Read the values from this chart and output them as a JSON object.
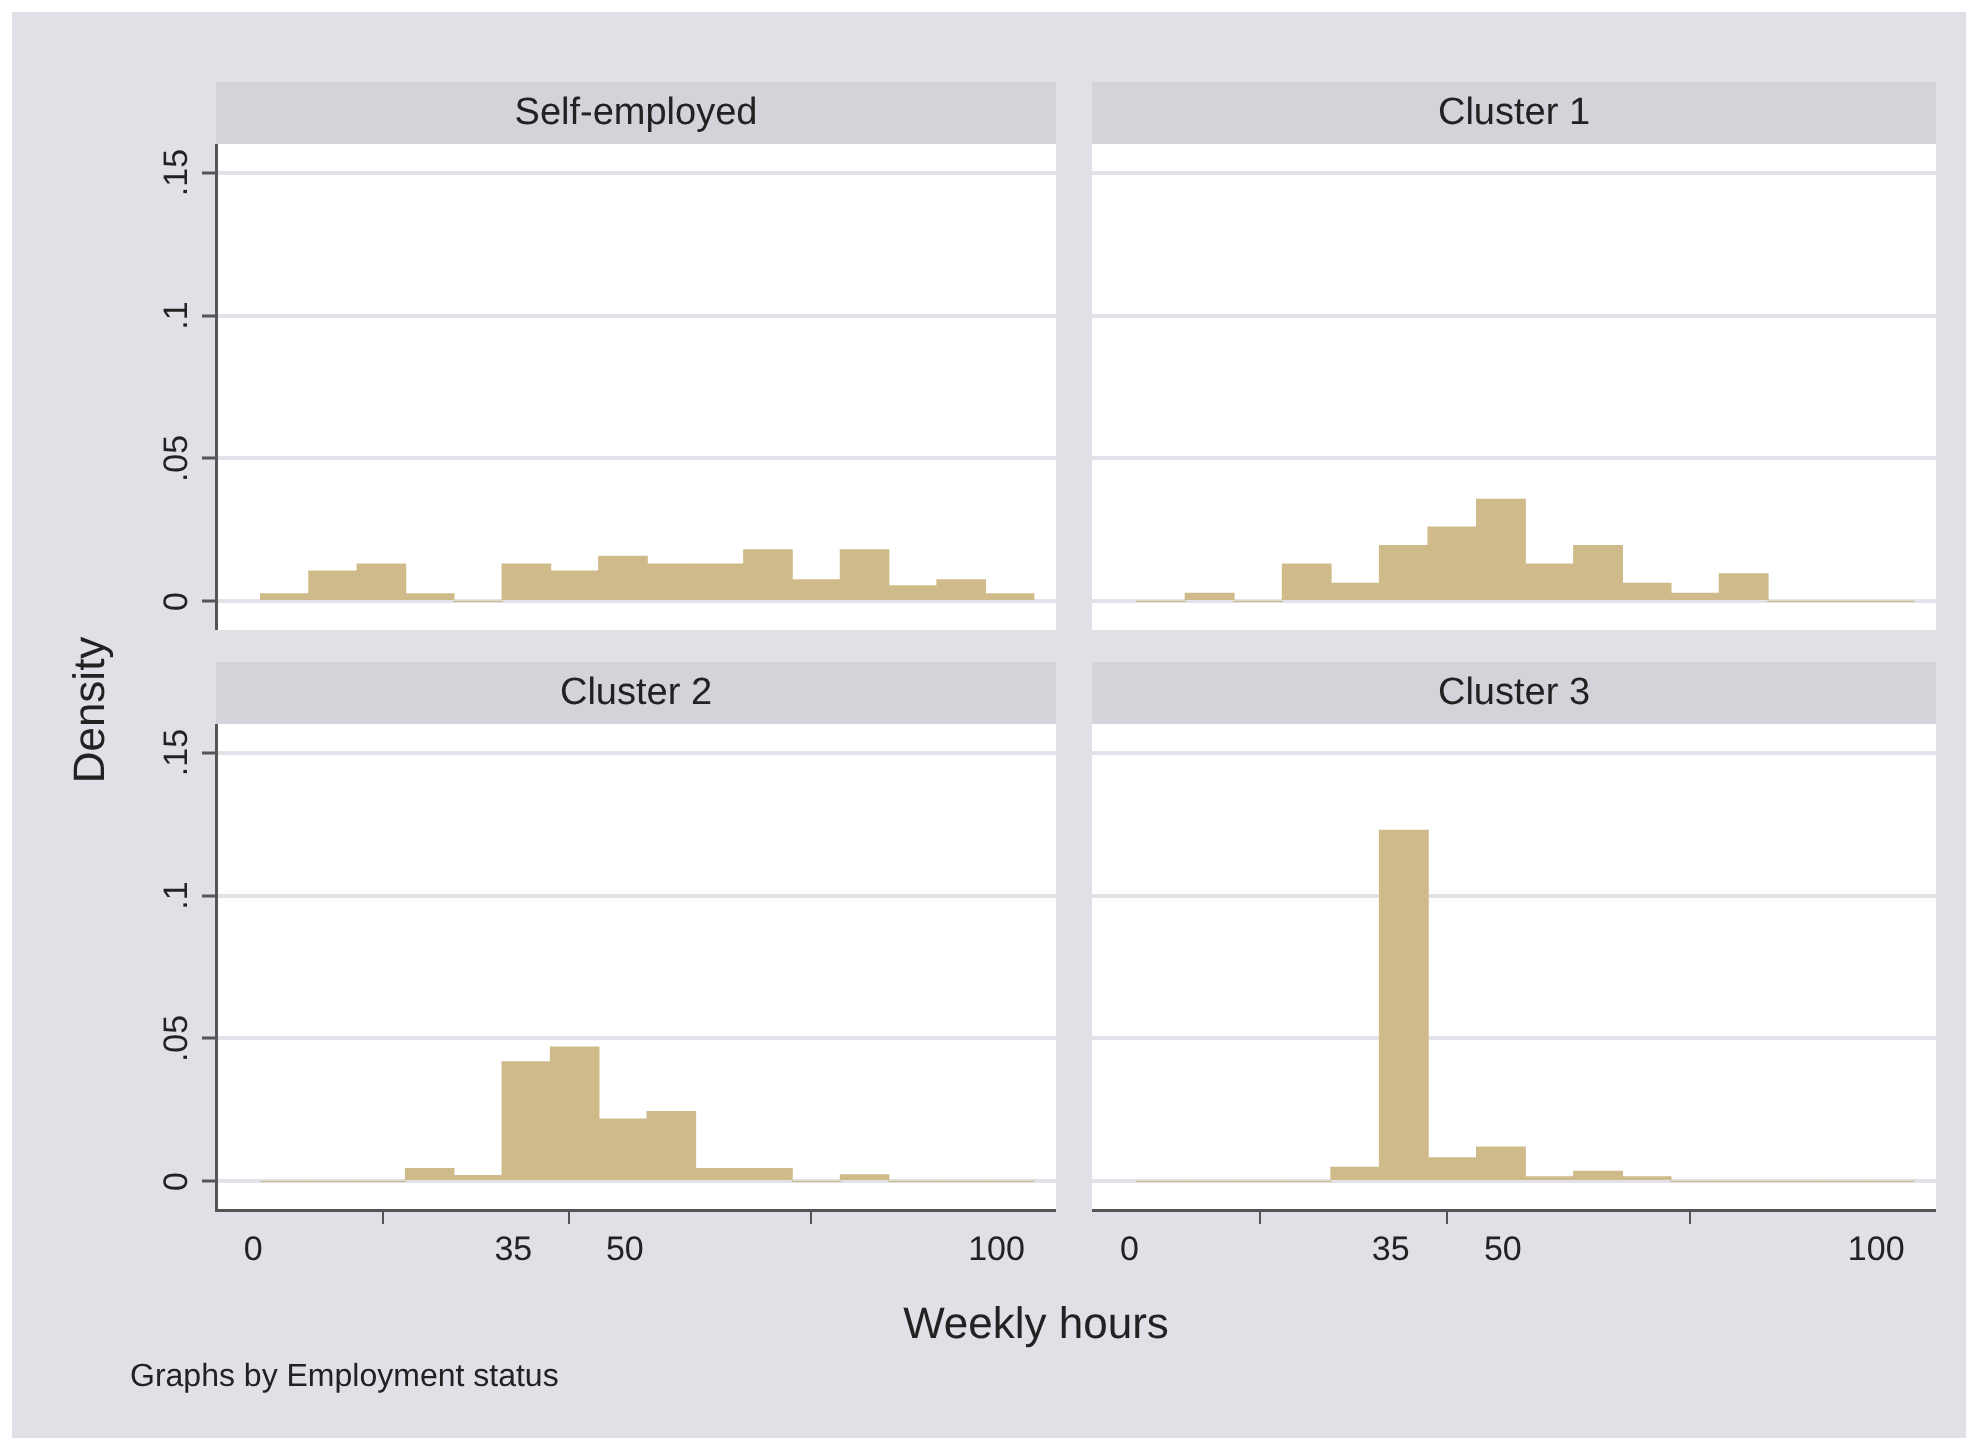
{
  "chart_data": [
    {
      "type": "histogram",
      "title": "Self-employed",
      "ylabel": "Density",
      "bins": [
        1,
        7.5,
        14,
        20.5,
        27,
        33.5,
        40,
        46.5,
        53,
        59.5,
        66,
        72.5,
        79,
        85.5,
        92,
        98.5,
        105
      ],
      "values": [
        0.0026,
        0.0106,
        0.013,
        0.0026,
        0,
        0.013,
        0.0106,
        0.0157,
        0.013,
        0.013,
        0.018,
        0.0075,
        0.018,
        0.0054,
        0.0075,
        0.0026
      ],
      "color": "#cfbb8a",
      "xlim": [
        -5,
        108
      ],
      "xticks": [
        0,
        35,
        50,
        100
      ],
      "ylim": [
        -0.01,
        0.16
      ],
      "yticks": [
        0,
        {
          "value": 0.05,
          "label": ".05"
        },
        {
          "value": 0.1,
          "label": ".1"
        },
        {
          "value": 0.15,
          "label": ".15"
        }
      ],
      "grid": "y",
      "tick_labels": "y"
    },
    {
      "type": "histogram",
      "title": "Cluster 1",
      "bins": [
        1,
        7.5,
        14,
        20.5,
        27,
        33.5,
        40,
        46.5,
        53,
        59.5,
        66,
        72.5,
        79,
        85.5,
        92,
        98.5,
        105
      ],
      "values": [
        0,
        0.0028,
        0,
        0.013,
        0.0063,
        0.0195,
        0.026,
        0.0357,
        0.013,
        0.0195,
        0.0063,
        0.0028,
        0.0096,
        0,
        0,
        0
      ],
      "color": "#cfbb8a",
      "xlim": [
        -5,
        108
      ],
      "xticks": [
        0,
        35,
        50,
        100
      ],
      "ylim": [
        -0.01,
        0.16
      ],
      "yticks": [
        0,
        0.05,
        0.1,
        0.15
      ],
      "grid": "y",
      "tick_labels": false
    },
    {
      "type": "histogram",
      "title": "Cluster 2",
      "xlabel": "Weekly hours",
      "annotations": [
        "Graphs by Employment status"
      ],
      "bins": [
        1,
        7.5,
        14,
        20.5,
        27,
        33.5,
        40,
        46.5,
        53,
        59.5,
        66,
        72.5,
        79,
        85.5,
        92,
        98.5,
        105
      ],
      "values": [
        0,
        0,
        0,
        0.0045,
        0.002,
        0.0418,
        0.047,
        0.0218,
        0.0244,
        0.0045,
        0.0045,
        0,
        0.0023,
        0,
        0,
        0
      ],
      "color": "#cfbb8a",
      "xlim": [
        -5,
        108
      ],
      "xticks": [
        0,
        35,
        50,
        100
      ],
      "ylim": [
        -0.01,
        0.16
      ],
      "yticks": [
        0,
        {
          "value": 0.05,
          "label": ".05"
        },
        {
          "value": 0.1,
          "label": ".1"
        },
        {
          "value": 0.15,
          "label": ".15"
        }
      ],
      "grid": "y"
    },
    {
      "type": "histogram",
      "title": "Cluster 3",
      "bins": [
        1,
        7.5,
        14,
        20.5,
        27,
        33.5,
        40,
        46.5,
        53,
        59.5,
        66,
        72.5,
        79,
        85.5,
        92,
        98.5,
        105
      ],
      "values": [
        0,
        0,
        0,
        0,
        0.0049,
        0.1228,
        0.0082,
        0.012,
        0.0016,
        0.0035,
        0.0016,
        0,
        0,
        0,
        0,
        0
      ],
      "color": "#cfbb8a",
      "xlim": [
        -5,
        108
      ],
      "xticks": [
        0,
        35,
        50,
        100
      ],
      "ylim": [
        -0.01,
        0.16
      ],
      "yticks": [
        0,
        0.05,
        0.1,
        0.15
      ],
      "grid": "y",
      "tick_labels": "x"
    }
  ]
}
